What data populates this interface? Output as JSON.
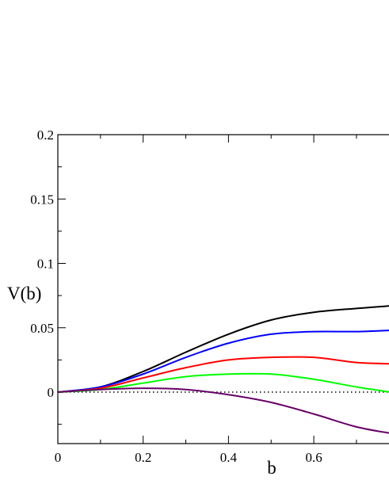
{
  "chart_data": {
    "type": "line",
    "title": "",
    "xlabel": "b",
    "ylabel": "V(b)",
    "xlim": [
      0,
      0.78
    ],
    "ylim": [
      -0.04,
      0.2
    ],
    "x_ticks": [
      0,
      0.2,
      0.4,
      0.6
    ],
    "x_tick_labels": [
      "0",
      "0.2",
      "0.4",
      "0.6"
    ],
    "y_ticks": [
      0,
      0.05,
      0.1,
      0.15,
      0.2
    ],
    "y_tick_labels": [
      "0",
      "0.05",
      "0.1",
      "0.15",
      "0.2"
    ],
    "x_minor_step": 0.1,
    "y_minor_step": 0.025,
    "grid": false,
    "reference_line": {
      "y": 0,
      "style": "dotted",
      "color": "#000000"
    },
    "x": [
      0,
      0.1,
      0.2,
      0.3,
      0.4,
      0.5,
      0.6,
      0.7,
      0.78
    ],
    "series": [
      {
        "color": "#000000",
        "values": [
          0,
          0.004,
          0.016,
          0.031,
          0.045,
          0.056,
          0.062,
          0.065,
          0.067
        ]
      },
      {
        "color": "#0000ff",
        "values": [
          0,
          0.004,
          0.014,
          0.027,
          0.038,
          0.045,
          0.047,
          0.047,
          0.048
        ]
      },
      {
        "color": "#ff0000",
        "values": [
          0,
          0.003,
          0.011,
          0.019,
          0.025,
          0.027,
          0.027,
          0.023,
          0.022
        ]
      },
      {
        "color": "#00ff00",
        "values": [
          0,
          0.002,
          0.007,
          0.012,
          0.014,
          0.014,
          0.01,
          0.004,
          0.0
        ]
      },
      {
        "color": "#660066",
        "values": [
          0,
          0.002,
          0.003,
          0.002,
          -0.002,
          -0.008,
          -0.017,
          -0.027,
          -0.032
        ]
      }
    ]
  }
}
